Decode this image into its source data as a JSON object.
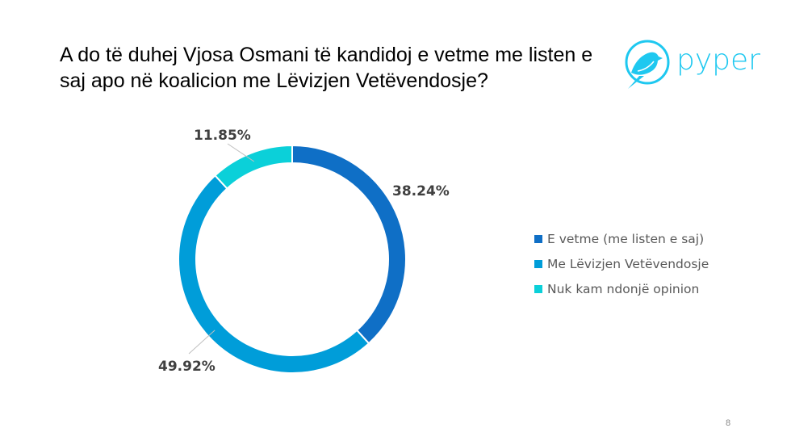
{
  "title": "A do të duhej Vjosa Osmani të kandidoj e vetme me listen e saj apo në koalicion me Lëvizjen Vetëvendosje?",
  "logo": {
    "text": "pyper",
    "color": "#1EC8F0"
  },
  "page_number": "8",
  "chart_data": {
    "type": "pie",
    "variant": "donut",
    "categories": [
      "E vetme (me listen e saj)",
      "Me Lëvizjen Vetëvendosje",
      "Nuk kam ndonjë opinion"
    ],
    "values": [
      38.24,
      49.92,
      11.85
    ],
    "labels": [
      "38.24%",
      "49.92%",
      "11.85%"
    ],
    "colors": [
      "#0F6FC6",
      "#009DD9",
      "#0BD0D9"
    ],
    "legend_position": "right"
  }
}
